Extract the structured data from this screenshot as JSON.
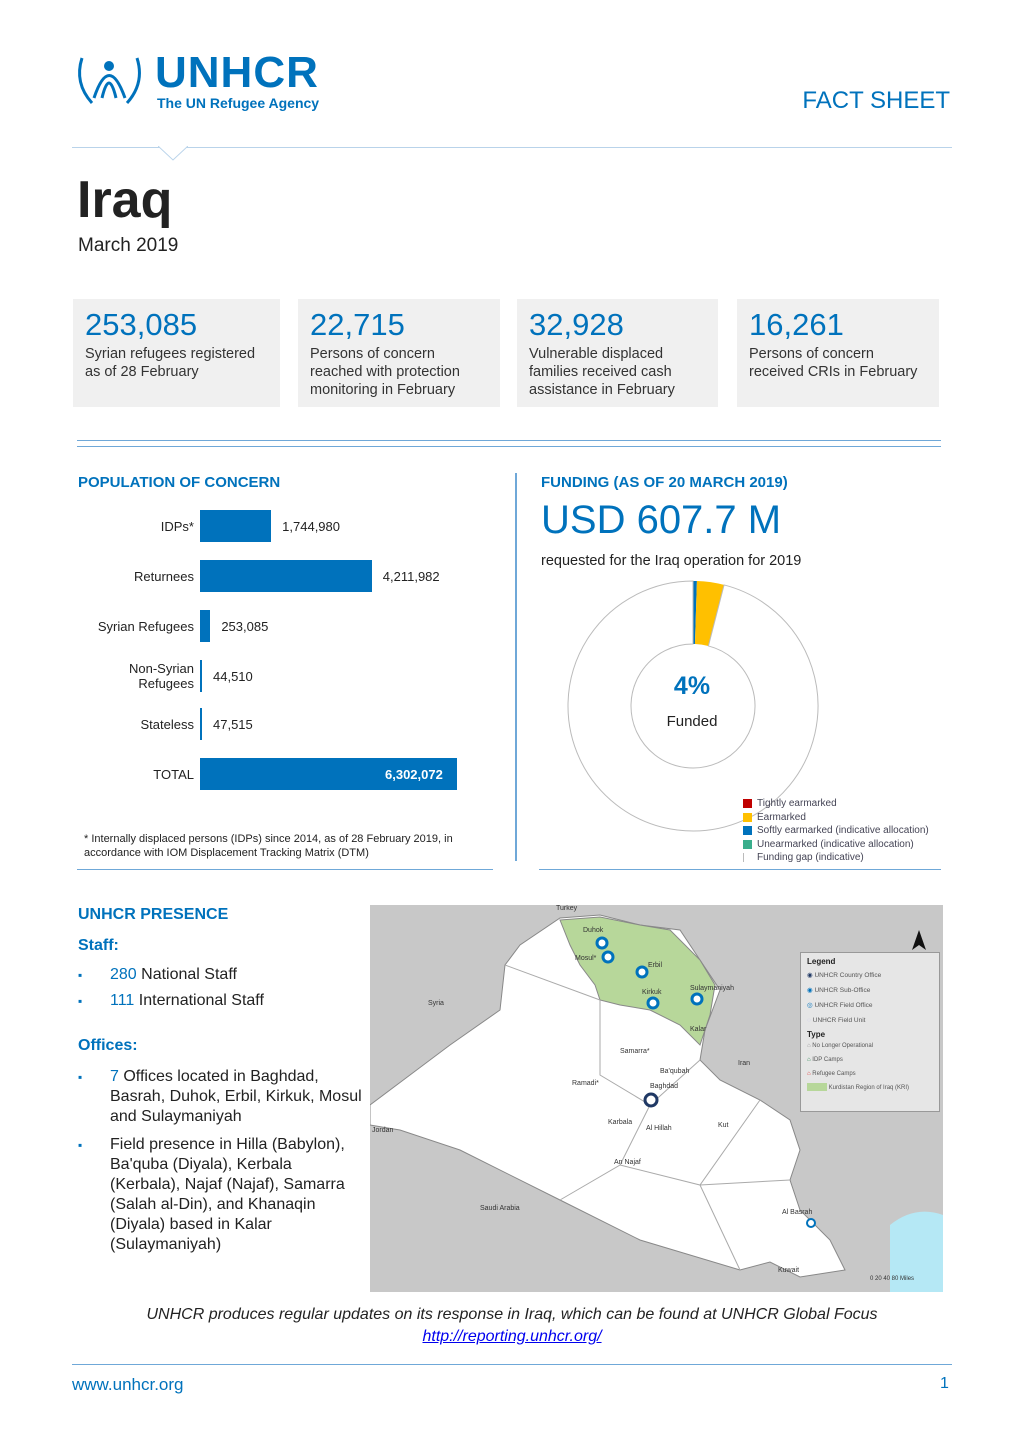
{
  "header": {
    "logo_name": "UNHCR",
    "logo_tagline": "The UN Refugee Agency",
    "doc_type": "FACT SHEET",
    "title": "Iraq",
    "date": "March 2019"
  },
  "kpis": [
    {
      "value": "253,085",
      "label": "Syrian refugees registered as of 28 February"
    },
    {
      "value": "22,715",
      "label": "Persons of concern reached with protection monitoring in February"
    },
    {
      "value": "32,928",
      "label": "Vulnerable displaced families received cash assistance in February"
    },
    {
      "value": "16,261",
      "label": "Persons of concern received CRIs in February"
    }
  ],
  "population": {
    "title": "POPULATION OF CONCERN",
    "footnote": "* Internally displaced persons (IDPs) since 2014, as of 28 February 2019, in accordance with IOM Displacement Tracking Matrix (DTM)"
  },
  "chart_data": [
    {
      "type": "bar",
      "orientation": "horizontal",
      "title": "POPULATION OF CONCERN",
      "categories": [
        "IDPs*",
        "Returnees",
        "Syrian Refugees",
        "Non-Syrian Refugees",
        "Stateless",
        "TOTAL"
      ],
      "values": [
        1744980,
        4211982,
        253085,
        44510,
        47515,
        6302072
      ],
      "labels": [
        "1,744,980",
        "4,211,982",
        "253,085",
        "44,510",
        "47,515",
        "6,302,072"
      ]
    },
    {
      "type": "pie",
      "title": "FUNDING (AS OF 20 MARCH 2019)",
      "center_value": "4%",
      "center_label": "Funded",
      "categories": [
        "Tightly earmarked",
        "Earmarked",
        "Softly earmarked (indicative allocation)",
        "Unearmarked (indicative allocation)",
        "Funding gap (indicative)"
      ],
      "values": [
        0,
        3.5,
        0.5,
        0,
        96
      ],
      "colors": [
        "#c00000",
        "#ffc000",
        "#0072bc",
        "#3aae8c",
        "#ffffff"
      ]
    }
  ],
  "funding": {
    "title": "FUNDING (AS OF 20 MARCH 2019)",
    "amount": "USD 607.7 M",
    "subtitle": "requested for the Iraq operation for 2019"
  },
  "presence": {
    "title": "UNHCR PRESENCE",
    "staff_heading": "Staff:",
    "staff": [
      {
        "n": "280",
        "t": " National Staff"
      },
      {
        "n": "111",
        "t": " International Staff"
      }
    ],
    "offices_heading": "Offices:",
    "offices": [
      {
        "n": "7",
        "t": " Offices located in Baghdad, Basrah, Duhok, Erbil, Kirkuk, Mosul and Sulaymaniyah"
      },
      {
        "n": "",
        "t": "Field presence in Hilla (Babylon), Ba'quba (Diyala), Kerbala (Kerbala), Najaf (Najaf), Samarra (Salah al-Din), and Khanaqin (Diyala) based in Kalar (Sulaymaniyah)"
      }
    ]
  },
  "map": {
    "countries": [
      "Turkey",
      "Syria",
      "Iran",
      "Jordan",
      "Saudi Arabia",
      "Kuwait"
    ],
    "cities": [
      "Duhok",
      "Mosul*",
      "Erbil",
      "Kirkuk",
      "Sulaymaniyah",
      "Kalar",
      "Samarra*",
      "Ba'qubah",
      "Ramadi*",
      "Baghdad",
      "Karbala",
      "Al Hillah",
      "An Najaf",
      "Kut",
      "Al Basrah"
    ],
    "legend_title": "Legend",
    "legend": [
      "UNHCR Country Office",
      "UNHCR Sub-Office",
      "UNHCR Field Office",
      "UNHCR Field Unit"
    ],
    "type_title": "Type",
    "types": [
      "No Longer Operational",
      "IDP Camps",
      "Refugee Camps",
      "Kurdistan Region of Iraq (KRI)"
    ],
    "scale": "0  20  40      80",
    "scale_unit": "Miles"
  },
  "footer": {
    "note": "UNHCR produces regular updates on its response in Iraq, which can be found at UNHCR Global Focus",
    "link": "http://reporting.unhcr.org/",
    "site": "www.unhcr.org",
    "page": "1"
  }
}
